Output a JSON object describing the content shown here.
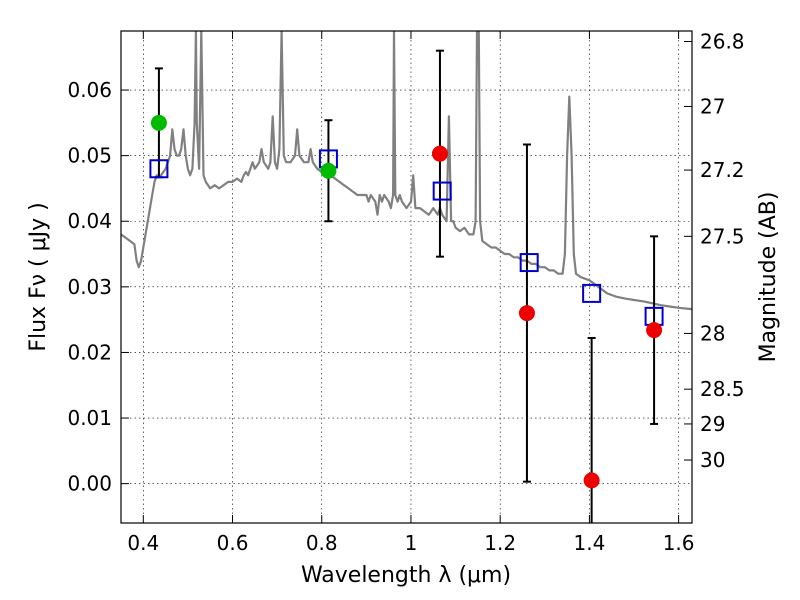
{
  "chart_data": {
    "type": "scatter",
    "xlabel": "Wavelength  λ (μm)",
    "ylabel": "Flux  Fν  ( μJy )",
    "y2label": "Magnitude (AB)",
    "xlim": [
      0.35,
      1.63
    ],
    "ylim": [
      -0.006,
      0.069
    ],
    "grid": true,
    "x_ticks": [
      0.4,
      0.6,
      0.8,
      1.0,
      1.2,
      1.4,
      1.6
    ],
    "x_tick_labels": [
      "0.4",
      "0.6",
      "0.8",
      "1",
      "1.2",
      "1.4",
      "1.6"
    ],
    "y_ticks": [
      0.0,
      0.01,
      0.02,
      0.03,
      0.04,
      0.05,
      0.06
    ],
    "y_tick_labels": [
      "0.00",
      "0.01",
      "0.02",
      "0.03",
      "0.04",
      "0.05",
      "0.06"
    ],
    "y2_ticks": [
      {
        "flux": 0.0674,
        "label": "26.8"
      },
      {
        "flux": 0.0575,
        "label": "27"
      },
      {
        "flux": 0.0478,
        "label": "27.2"
      },
      {
        "flux": 0.0377,
        "label": "27.5"
      },
      {
        "flux": 0.0229,
        "label": "28"
      },
      {
        "flux": 0.0144,
        "label": "28.5"
      },
      {
        "flux": 0.0091,
        "label": "29"
      },
      {
        "flux": 0.0036,
        "label": "30"
      }
    ],
    "series": [
      {
        "kind": "line",
        "color": "#808080",
        "points": [
          [
            0.35,
            0.038
          ],
          [
            0.36,
            0.0375
          ],
          [
            0.37,
            0.037
          ],
          [
            0.38,
            0.0365
          ],
          [
            0.385,
            0.034
          ],
          [
            0.39,
            0.033
          ],
          [
            0.395,
            0.034
          ],
          [
            0.4,
            0.036
          ],
          [
            0.405,
            0.038
          ],
          [
            0.41,
            0.04
          ],
          [
            0.415,
            0.042
          ],
          [
            0.42,
            0.044
          ],
          [
            0.425,
            0.046
          ],
          [
            0.43,
            0.047
          ],
          [
            0.44,
            0.047
          ],
          [
            0.45,
            0.048
          ],
          [
            0.46,
            0.05
          ],
          [
            0.465,
            0.054
          ],
          [
            0.47,
            0.051
          ],
          [
            0.475,
            0.05
          ],
          [
            0.48,
            0.05
          ],
          [
            0.485,
            0.051
          ],
          [
            0.49,
            0.054
          ],
          [
            0.495,
            0.05
          ],
          [
            0.5,
            0.048
          ],
          [
            0.505,
            0.047
          ],
          [
            0.51,
            0.048
          ],
          [
            0.515,
            0.055
          ],
          [
            0.518,
            0.069
          ],
          [
            0.52,
            0.055
          ],
          [
            0.525,
            0.048
          ],
          [
            0.53,
            0.069
          ],
          [
            0.535,
            0.047
          ],
          [
            0.54,
            0.046
          ],
          [
            0.55,
            0.045
          ],
          [
            0.56,
            0.0455
          ],
          [
            0.57,
            0.045
          ],
          [
            0.58,
            0.0455
          ],
          [
            0.59,
            0.046
          ],
          [
            0.6,
            0.046
          ],
          [
            0.61,
            0.0465
          ],
          [
            0.62,
            0.046
          ],
          [
            0.625,
            0.047
          ],
          [
            0.63,
            0.0475
          ],
          [
            0.635,
            0.047
          ],
          [
            0.64,
            0.048
          ],
          [
            0.645,
            0.049
          ],
          [
            0.65,
            0.048
          ],
          [
            0.655,
            0.0485
          ],
          [
            0.66,
            0.049
          ],
          [
            0.665,
            0.051
          ],
          [
            0.67,
            0.049
          ],
          [
            0.68,
            0.048
          ],
          [
            0.685,
            0.049
          ],
          [
            0.69,
            0.056
          ],
          [
            0.695,
            0.049
          ],
          [
            0.7,
            0.048
          ],
          [
            0.705,
            0.051
          ],
          [
            0.71,
            0.069
          ],
          [
            0.715,
            0.05
          ],
          [
            0.72,
            0.049
          ],
          [
            0.73,
            0.049
          ],
          [
            0.74,
            0.05
          ],
          [
            0.745,
            0.054
          ],
          [
            0.75,
            0.05
          ],
          [
            0.76,
            0.049
          ],
          [
            0.77,
            0.049
          ],
          [
            0.775,
            0.051
          ],
          [
            0.78,
            0.049
          ],
          [
            0.79,
            0.048
          ],
          [
            0.8,
            0.0475
          ],
          [
            0.81,
            0.047
          ],
          [
            0.815,
            0.0475
          ],
          [
            0.82,
            0.047
          ],
          [
            0.83,
            0.0465
          ],
          [
            0.84,
            0.046
          ],
          [
            0.85,
            0.0455
          ],
          [
            0.86,
            0.045
          ],
          [
            0.87,
            0.0445
          ],
          [
            0.88,
            0.044
          ],
          [
            0.89,
            0.044
          ],
          [
            0.9,
            0.044
          ],
          [
            0.905,
            0.043
          ],
          [
            0.91,
            0.044
          ],
          [
            0.92,
            0.043
          ],
          [
            0.925,
            0.041
          ],
          [
            0.93,
            0.044
          ],
          [
            0.935,
            0.043
          ],
          [
            0.94,
            0.044
          ],
          [
            0.95,
            0.043
          ],
          [
            0.955,
            0.042
          ],
          [
            0.96,
            0.044
          ],
          [
            0.962,
            0.069
          ],
          [
            0.965,
            0.044
          ],
          [
            0.97,
            0.043
          ],
          [
            0.975,
            0.044
          ],
          [
            0.98,
            0.043
          ],
          [
            0.99,
            0.042
          ],
          [
            1.0,
            0.043
          ],
          [
            1.005,
            0.047
          ],
          [
            1.01,
            0.042
          ],
          [
            1.02,
            0.042
          ],
          [
            1.03,
            0.0415
          ],
          [
            1.04,
            0.041
          ],
          [
            1.05,
            0.042
          ],
          [
            1.06,
            0.041
          ],
          [
            1.065,
            0.042
          ],
          [
            1.07,
            0.041
          ],
          [
            1.08,
            0.04
          ],
          [
            1.085,
            0.056
          ],
          [
            1.09,
            0.04
          ],
          [
            1.095,
            0.04
          ],
          [
            1.1,
            0.039
          ],
          [
            1.11,
            0.0385
          ],
          [
            1.12,
            0.039
          ],
          [
            1.13,
            0.038
          ],
          [
            1.14,
            0.038
          ],
          [
            1.145,
            0.04
          ],
          [
            1.148,
            0.069
          ],
          [
            1.152,
            0.069
          ],
          [
            1.155,
            0.04
          ],
          [
            1.16,
            0.037
          ],
          [
            1.17,
            0.0365
          ],
          [
            1.18,
            0.036
          ],
          [
            1.19,
            0.036
          ],
          [
            1.2,
            0.0355
          ],
          [
            1.21,
            0.035
          ],
          [
            1.22,
            0.035
          ],
          [
            1.23,
            0.0345
          ],
          [
            1.24,
            0.0345
          ],
          [
            1.25,
            0.034
          ],
          [
            1.26,
            0.034
          ],
          [
            1.27,
            0.0335
          ],
          [
            1.28,
            0.0335
          ],
          [
            1.29,
            0.033
          ],
          [
            1.3,
            0.033
          ],
          [
            1.31,
            0.0325
          ],
          [
            1.32,
            0.0325
          ],
          [
            1.33,
            0.032
          ],
          [
            1.34,
            0.032
          ],
          [
            1.345,
            0.035
          ],
          [
            1.35,
            0.05
          ],
          [
            1.355,
            0.059
          ],
          [
            1.36,
            0.05
          ],
          [
            1.365,
            0.035
          ],
          [
            1.37,
            0.032
          ],
          [
            1.38,
            0.0315
          ],
          [
            1.4,
            0.031
          ],
          [
            1.42,
            0.03
          ],
          [
            1.44,
            0.029
          ],
          [
            1.46,
            0.0285
          ],
          [
            1.48,
            0.0282
          ],
          [
            1.5,
            0.028
          ],
          [
            1.52,
            0.0278
          ],
          [
            1.54,
            0.0275
          ],
          [
            1.56,
            0.0272
          ],
          [
            1.58,
            0.027
          ],
          [
            1.6,
            0.0268
          ],
          [
            1.63,
            0.0266
          ]
        ]
      },
      {
        "kind": "scatter",
        "marker": "square",
        "color": "#0000cc",
        "x": [
          0.435,
          0.815,
          1.07,
          1.265,
          1.405,
          1.545
        ],
        "y": [
          0.048,
          0.0495,
          0.0446,
          0.0337,
          0.029,
          0.0255
        ]
      },
      {
        "kind": "scatter",
        "marker": "circle",
        "color": "#00bb00",
        "x": [
          0.435,
          0.815
        ],
        "y": [
          0.055,
          0.0477
        ],
        "yerr": [
          0.0083,
          0.0077
        ]
      },
      {
        "kind": "scatter",
        "marker": "circle",
        "color": "#ee0000",
        "x": [
          1.065,
          1.26,
          1.405,
          1.545
        ],
        "y": [
          0.0503,
          0.026,
          0.0005,
          0.0234
        ],
        "yerr": [
          0.0157,
          0.0257,
          0.0217,
          0.0143
        ]
      }
    ]
  }
}
